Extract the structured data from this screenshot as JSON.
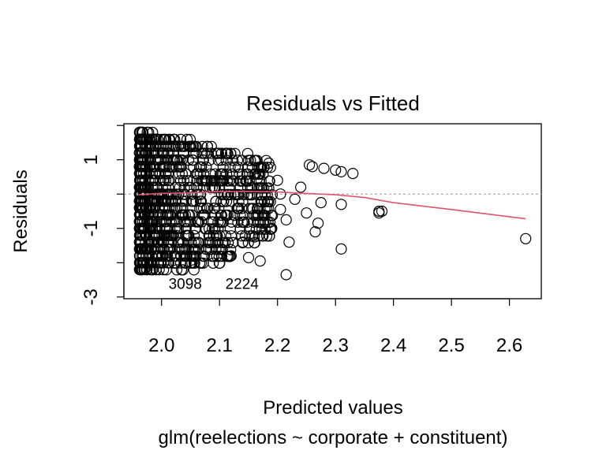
{
  "chart_data": {
    "type": "scatter",
    "title": "Residuals vs Fitted",
    "xlabel": "Predicted values",
    "subtitle": "glm(reelections ~ corporate + constituent)",
    "ylabel": "Residuals",
    "xlim": [
      1.935,
      2.655
    ],
    "ylim": [
      -3.05,
      2.05
    ],
    "x_ticks": [
      2.0,
      2.1,
      2.2,
      2.3,
      2.4,
      2.5,
      2.6
    ],
    "x_tick_labels": [
      "2.0",
      "2.1",
      "2.2",
      "2.3",
      "2.4",
      "2.5",
      "2.6"
    ],
    "y_ticks": [
      -3,
      -2,
      -1,
      0,
      1,
      2
    ],
    "y_tick_labels": [
      "-3",
      "",
      "-1",
      "",
      "1",
      ""
    ],
    "reference_line": {
      "y": 0,
      "style": "dotted",
      "color": "#aaaaaa"
    },
    "grid": false,
    "colors": {
      "points": "#000000",
      "smooth": "#df536b"
    },
    "points": [
      [
        2.19,
        -1.0
      ],
      [
        2.215,
        -0.75
      ],
      [
        2.22,
        -1.4
      ],
      [
        2.205,
        -0.45
      ],
      [
        2.23,
        -0.15
      ],
      [
        2.24,
        0.2
      ],
      [
        2.25,
        -0.55
      ],
      [
        2.255,
        0.85
      ],
      [
        2.26,
        0.8
      ],
      [
        2.265,
        -1.1
      ],
      [
        2.27,
        -0.85
      ],
      [
        2.275,
        -0.25
      ],
      [
        2.28,
        0.75
      ],
      [
        2.3,
        0.7
      ],
      [
        2.31,
        -0.3
      ],
      [
        2.31,
        0.65
      ],
      [
        2.31,
        -1.6
      ],
      [
        2.33,
        0.6
      ],
      [
        2.215,
        -2.35
      ],
      [
        2.12,
        -1.8
      ],
      [
        2.15,
        -1.85
      ],
      [
        2.17,
        -1.95
      ],
      [
        2.14,
        -1.4
      ],
      [
        2.16,
        -1.25
      ],
      [
        2.175,
        -0.85
      ],
      [
        2.185,
        0.9
      ],
      [
        2.2,
        0.4
      ],
      [
        2.205,
        0.0
      ],
      [
        2.165,
        0.45
      ],
      [
        2.165,
        0.45
      ],
      [
        2.375,
        -0.5
      ],
      [
        2.38,
        -0.5
      ],
      [
        2.375,
        -0.55
      ],
      [
        2.628,
        -1.3
      ]
    ],
    "smooth_line": [
      [
        1.96,
        -0.02
      ],
      [
        2.0,
        0.02
      ],
      [
        2.05,
        0.04
      ],
      [
        2.1,
        0.07
      ],
      [
        2.15,
        0.08
      ],
      [
        2.2,
        0.06
      ],
      [
        2.25,
        0.02
      ],
      [
        2.3,
        -0.02
      ],
      [
        2.35,
        -0.1
      ],
      [
        2.4,
        -0.25
      ],
      [
        2.5,
        -0.45
      ],
      [
        2.628,
        -0.72
      ]
    ],
    "annotations": [
      {
        "text": "3098",
        "x": 2.012,
        "y": -2.6
      },
      {
        "text": "2224",
        "x": 2.11,
        "y": -2.6
      }
    ]
  }
}
